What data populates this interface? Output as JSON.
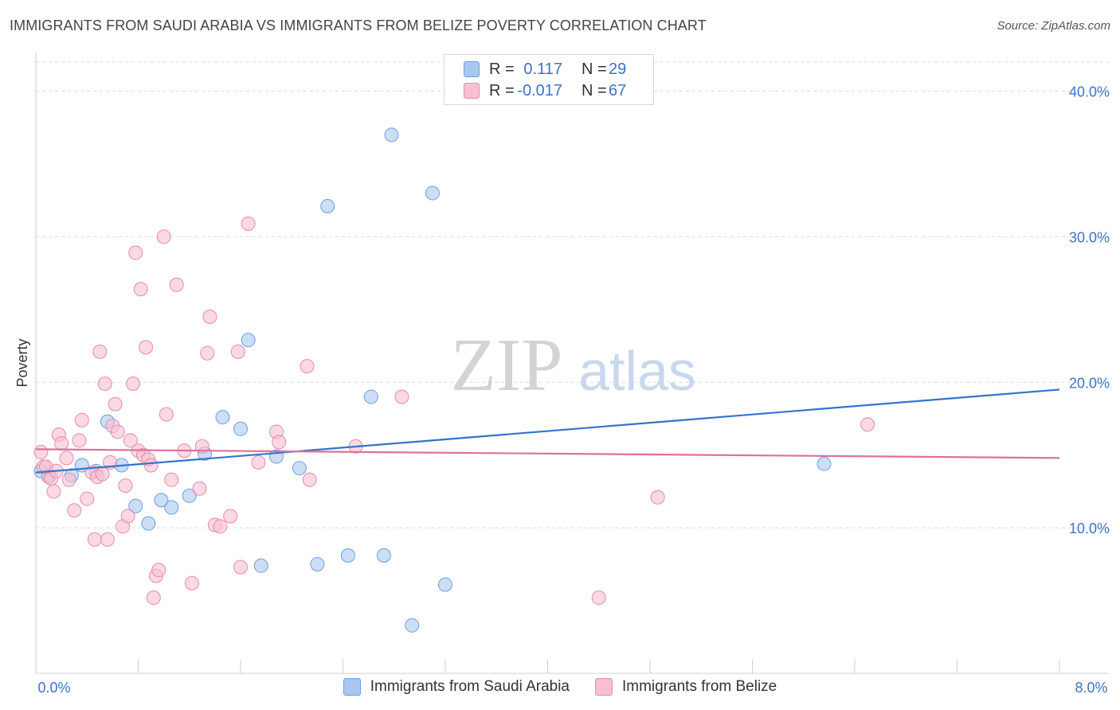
{
  "header": {
    "title": "IMMIGRANTS FROM SAUDI ARABIA VS IMMIGRANTS FROM BELIZE POVERTY CORRELATION CHART",
    "source": "Source: ZipAtlas.com"
  },
  "legend": {
    "rows": [
      {
        "r_label": "R =",
        "r_value": "0.117",
        "n_label": "N =",
        "n_value": "29",
        "color": "#a8c8f0",
        "stroke": "#6f9ee0"
      },
      {
        "r_label": "R =",
        "r_value": "-0.017",
        "n_label": "N =",
        "n_value": "67",
        "color": "#f8bfd2",
        "stroke": "#e88aa8"
      }
    ]
  },
  "watermark": {
    "zip": "ZIP",
    "atlas": "atlas"
  },
  "chart_data": {
    "type": "scatter",
    "title": "IMMIGRANTS FROM SAUDI ARABIA VS IMMIGRANTS FROM BELIZE POVERTY CORRELATION CHART",
    "xlabel": "",
    "ylabel": "Poverty",
    "xlim": [
      0,
      8
    ],
    "ylim": [
      0,
      42
    ],
    "x_tick_labels": [
      "0.0%",
      "8.0%"
    ],
    "y_ticks": [
      10,
      20,
      30,
      40
    ],
    "y_tick_labels": [
      "10.0%",
      "20.0%",
      "30.0%",
      "40.0%"
    ],
    "grid": true,
    "legend_position": "top-center",
    "series": [
      {
        "name": "Immigrants from Saudi Arabia",
        "color": "#a8c8f0",
        "stroke": "#6f9ee0",
        "line_color": "#3373d0",
        "trend": [
          [
            0.0,
            13.8
          ],
          [
            8.0,
            19.5
          ]
        ],
        "points": [
          [
            0.04,
            13.9
          ],
          [
            0.1,
            13.6
          ],
          [
            0.28,
            13.6
          ],
          [
            0.36,
            14.3
          ],
          [
            0.47,
            13.9
          ],
          [
            0.56,
            17.3
          ],
          [
            0.67,
            14.3
          ],
          [
            0.78,
            11.5
          ],
          [
            0.88,
            10.3
          ],
          [
            0.98,
            11.9
          ],
          [
            1.06,
            11.4
          ],
          [
            1.2,
            12.2
          ],
          [
            1.32,
            15.1
          ],
          [
            1.46,
            17.6
          ],
          [
            1.6,
            16.8
          ],
          [
            1.66,
            22.9
          ],
          [
            1.76,
            7.4
          ],
          [
            1.88,
            14.9
          ],
          [
            2.06,
            14.1
          ],
          [
            2.2,
            7.5
          ],
          [
            2.28,
            32.1
          ],
          [
            2.44,
            8.1
          ],
          [
            2.62,
            19.0
          ],
          [
            2.72,
            8.1
          ],
          [
            2.78,
            37.0
          ],
          [
            2.94,
            3.3
          ],
          [
            3.1,
            33.0
          ],
          [
            3.2,
            6.1
          ],
          [
            6.16,
            14.4
          ]
        ]
      },
      {
        "name": "Immigrants from Belize",
        "color": "#f8bfd2",
        "stroke": "#e88aa8",
        "line_color": "#e0709a",
        "trend": [
          [
            0.0,
            15.4
          ],
          [
            8.0,
            14.8
          ]
        ],
        "points": [
          [
            0.04,
            15.2
          ],
          [
            0.06,
            14.2
          ],
          [
            0.1,
            13.5
          ],
          [
            0.14,
            12.5
          ],
          [
            0.18,
            16.4
          ],
          [
            0.2,
            15.8
          ],
          [
            0.24,
            14.8
          ],
          [
            0.26,
            13.3
          ],
          [
            0.3,
            11.2
          ],
          [
            0.34,
            16.0
          ],
          [
            0.36,
            17.4
          ],
          [
            0.4,
            12.0
          ],
          [
            0.44,
            13.8
          ],
          [
            0.48,
            13.5
          ],
          [
            0.46,
            9.2
          ],
          [
            0.5,
            22.1
          ],
          [
            0.52,
            13.7
          ],
          [
            0.54,
            19.9
          ],
          [
            0.56,
            9.2
          ],
          [
            0.58,
            14.5
          ],
          [
            0.6,
            17.0
          ],
          [
            0.62,
            18.5
          ],
          [
            0.64,
            16.6
          ],
          [
            0.68,
            10.1
          ],
          [
            0.7,
            12.9
          ],
          [
            0.72,
            10.8
          ],
          [
            0.74,
            16.0
          ],
          [
            0.76,
            19.9
          ],
          [
            0.78,
            28.9
          ],
          [
            0.8,
            15.3
          ],
          [
            0.82,
            26.4
          ],
          [
            0.84,
            15.0
          ],
          [
            0.86,
            22.4
          ],
          [
            0.88,
            14.7
          ],
          [
            0.9,
            14.3
          ],
          [
            0.92,
            5.2
          ],
          [
            0.94,
            6.7
          ],
          [
            0.96,
            7.1
          ],
          [
            1.0,
            30.0
          ],
          [
            1.02,
            17.8
          ],
          [
            1.06,
            13.3
          ],
          [
            1.1,
            26.7
          ],
          [
            1.16,
            15.3
          ],
          [
            1.22,
            6.2
          ],
          [
            1.28,
            12.7
          ],
          [
            1.3,
            15.6
          ],
          [
            1.34,
            22.0
          ],
          [
            1.36,
            24.5
          ],
          [
            1.4,
            10.2
          ],
          [
            1.44,
            10.1
          ],
          [
            1.52,
            10.8
          ],
          [
            1.58,
            22.1
          ],
          [
            1.6,
            7.3
          ],
          [
            1.66,
            30.9
          ],
          [
            1.74,
            14.5
          ],
          [
            1.88,
            16.6
          ],
          [
            1.9,
            15.9
          ],
          [
            2.12,
            21.1
          ],
          [
            2.14,
            13.3
          ],
          [
            2.5,
            15.6
          ],
          [
            2.86,
            19.0
          ],
          [
            4.4,
            5.2
          ],
          [
            4.86,
            12.1
          ],
          [
            6.5,
            17.1
          ],
          [
            0.08,
            14.2
          ],
          [
            0.12,
            13.4
          ],
          [
            0.16,
            13.9
          ]
        ]
      }
    ]
  },
  "bottom_legend": [
    {
      "label": "Immigrants from Saudi Arabia",
      "color": "#a8c8f0",
      "stroke": "#6f9ee0"
    },
    {
      "label": "Immigrants from Belize",
      "color": "#f8bfd2",
      "stroke": "#e88aa8"
    }
  ]
}
